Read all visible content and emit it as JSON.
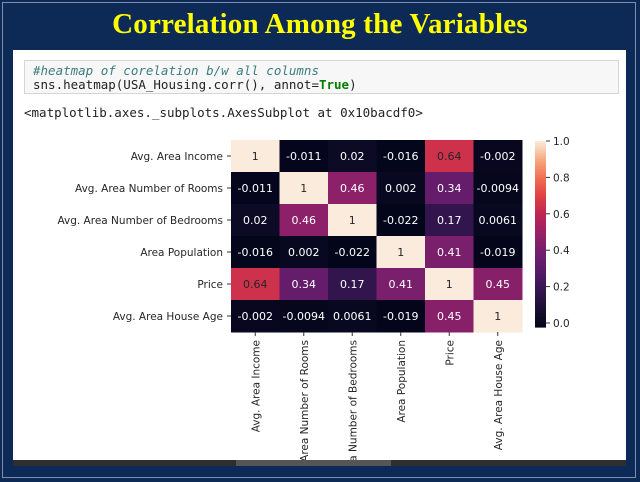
{
  "slide": {
    "title": "Correlation Among the Variables",
    "title_color": "#ffff00",
    "background_color": "#0d2a57"
  },
  "code_cell": {
    "comment": "#heatmap of corelation b/w all columns",
    "code_prefix": "sns.heatmap(USA_Housing.corr(), annot=",
    "code_keyword": "True",
    "code_suffix": ")"
  },
  "output": {
    "text": "<matplotlib.axes._subplots.AxesSubplot at 0x10bacdf0>"
  },
  "chart_data": {
    "type": "heatmap",
    "title": "",
    "xlabel": "",
    "ylabel": "",
    "labels": [
      "Avg. Area Income",
      "Avg. Area Number of Rooms",
      "Avg. Area Number of Bedrooms",
      "Area Population",
      "Price",
      "Avg. Area House Age"
    ],
    "values": [
      [
        1,
        -0.011,
        0.02,
        -0.016,
        0.64,
        -0.002
      ],
      [
        -0.011,
        1,
        0.46,
        0.002,
        0.34,
        -0.0094
      ],
      [
        0.02,
        0.46,
        1,
        -0.022,
        0.17,
        0.0061
      ],
      [
        -0.016,
        0.002,
        -0.022,
        1,
        0.41,
        -0.019
      ],
      [
        0.64,
        0.34,
        0.17,
        0.41,
        1,
        0.45
      ],
      [
        -0.002,
        -0.0094,
        0.0061,
        -0.019,
        0.45,
        1
      ]
    ],
    "annotations": [
      [
        "1",
        "-0.011",
        "0.02",
        "-0.016",
        "0.64",
        "-0.002"
      ],
      [
        "-0.011",
        "1",
        "0.46",
        "0.002",
        "0.34",
        "-0.0094"
      ],
      [
        "0.02",
        "0.46",
        "1",
        "-0.022",
        "0.17",
        "0.0061"
      ],
      [
        "-0.016",
        "0.002",
        "-0.022",
        "1",
        "0.41",
        "-0.019"
      ],
      [
        "0.64",
        "0.34",
        "0.17",
        "0.41",
        "1",
        "0.45"
      ],
      [
        "-0.002",
        "-0.0094",
        "0.0061",
        "-0.019",
        "0.45",
        "1"
      ]
    ],
    "colorbar": {
      "range": [
        -0.022,
        1.0
      ],
      "ticks": [
        0.0,
        0.2,
        0.4,
        0.6,
        0.8,
        1.0
      ],
      "tick_labels": [
        "0.0",
        "0.2",
        "0.4",
        "0.6",
        "0.8",
        "1.0"
      ],
      "colormap": "rocket"
    },
    "grid": false,
    "legend": "colorbar-right"
  }
}
